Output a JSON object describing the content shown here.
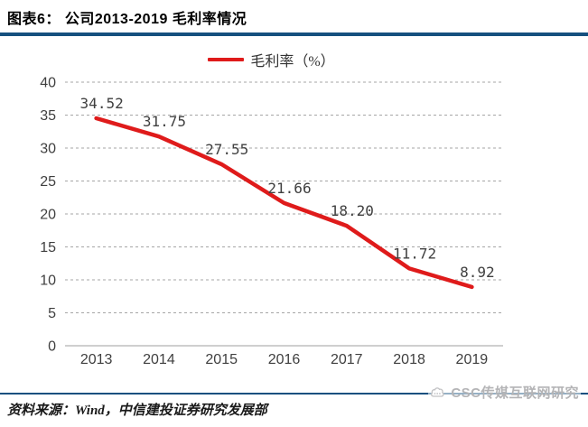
{
  "header": {
    "title": "图表6：  公司2013-2019 毛利率情况"
  },
  "chart_data": {
    "type": "line",
    "title": "",
    "legend": "毛利率（%）",
    "categories": [
      "2013",
      "2014",
      "2015",
      "2016",
      "2017",
      "2018",
      "2019"
    ],
    "values": [
      34.52,
      31.75,
      27.55,
      21.66,
      18.2,
      11.72,
      8.92
    ],
    "value_labels": [
      "34.52",
      "31.75",
      "27.55",
      "21.66",
      "18.20",
      "11.72",
      "8.92"
    ],
    "xlabel": "",
    "ylabel": "",
    "ylim": [
      0,
      40
    ],
    "ytick_step": 5,
    "grid": "horizontal-dashed",
    "legend_position": "top-center"
  },
  "footer": {
    "source": "资料来源：Wind，中信建投证券研究发展部",
    "watermark": "CSC传媒互联网研究"
  },
  "colors": {
    "line": "#df1b1b",
    "rule": "#15507f",
    "gridline": "#a6a6a6",
    "axis_line": "#bfbfbf",
    "tick_text": "#3f3f3f",
    "data_label_text": "#404040"
  }
}
